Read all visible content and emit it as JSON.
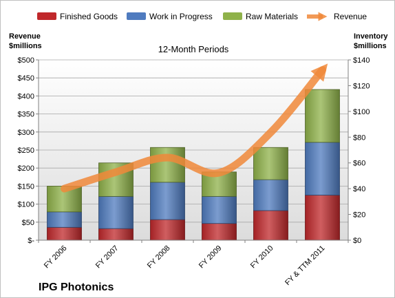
{
  "chart_data": {
    "type": "bar",
    "subtitle": "12-Month Periods",
    "company": "IPG Photonics",
    "categories": [
      "FY 2006",
      "FY 2007",
      "FY 2008",
      "FY 2009",
      "FY 2010",
      "FY & TTM 2011"
    ],
    "left_axis": {
      "title_line1": "Revenue",
      "title_line2": "$millions",
      "ylim": [
        0,
        500
      ],
      "ticks": [
        0,
        50,
        100,
        150,
        200,
        250,
        300,
        350,
        400,
        450,
        500
      ],
      "tick_labels": [
        "$-",
        "$50",
        "$100",
        "$150",
        "$200",
        "$250",
        "$300",
        "$350",
        "$400",
        "$450",
        "$500"
      ]
    },
    "right_axis": {
      "title_line1": "Inventory",
      "title_line2": "$millions",
      "ylim": [
        0,
        140
      ],
      "ticks": [
        0,
        20,
        40,
        60,
        80,
        100,
        120,
        140
      ],
      "tick_labels": [
        "$0",
        "$20",
        "$40",
        "$60",
        "$80",
        "$100",
        "$120",
        "$140"
      ]
    },
    "series": [
      {
        "name": "Finished Goods",
        "axis": "right",
        "color": "#c0282b",
        "values": [
          10,
          9,
          16,
          13,
          23,
          35
        ]
      },
      {
        "name": "Work in Progress",
        "axis": "right",
        "color": "#4f7bbf",
        "values": [
          12,
          25,
          29,
          21,
          24,
          41
        ]
      },
      {
        "name": "Raw Materials",
        "axis": "right",
        "color": "#8fb24a",
        "values": [
          20,
          26,
          27,
          19,
          25,
          41
        ]
      },
      {
        "name": "Revenue",
        "axis": "left",
        "type": "line",
        "color": "#f0883a",
        "values": [
          143,
          189,
          229,
          187,
          299,
          472
        ]
      }
    ],
    "grid": true,
    "legend_position": "top"
  }
}
